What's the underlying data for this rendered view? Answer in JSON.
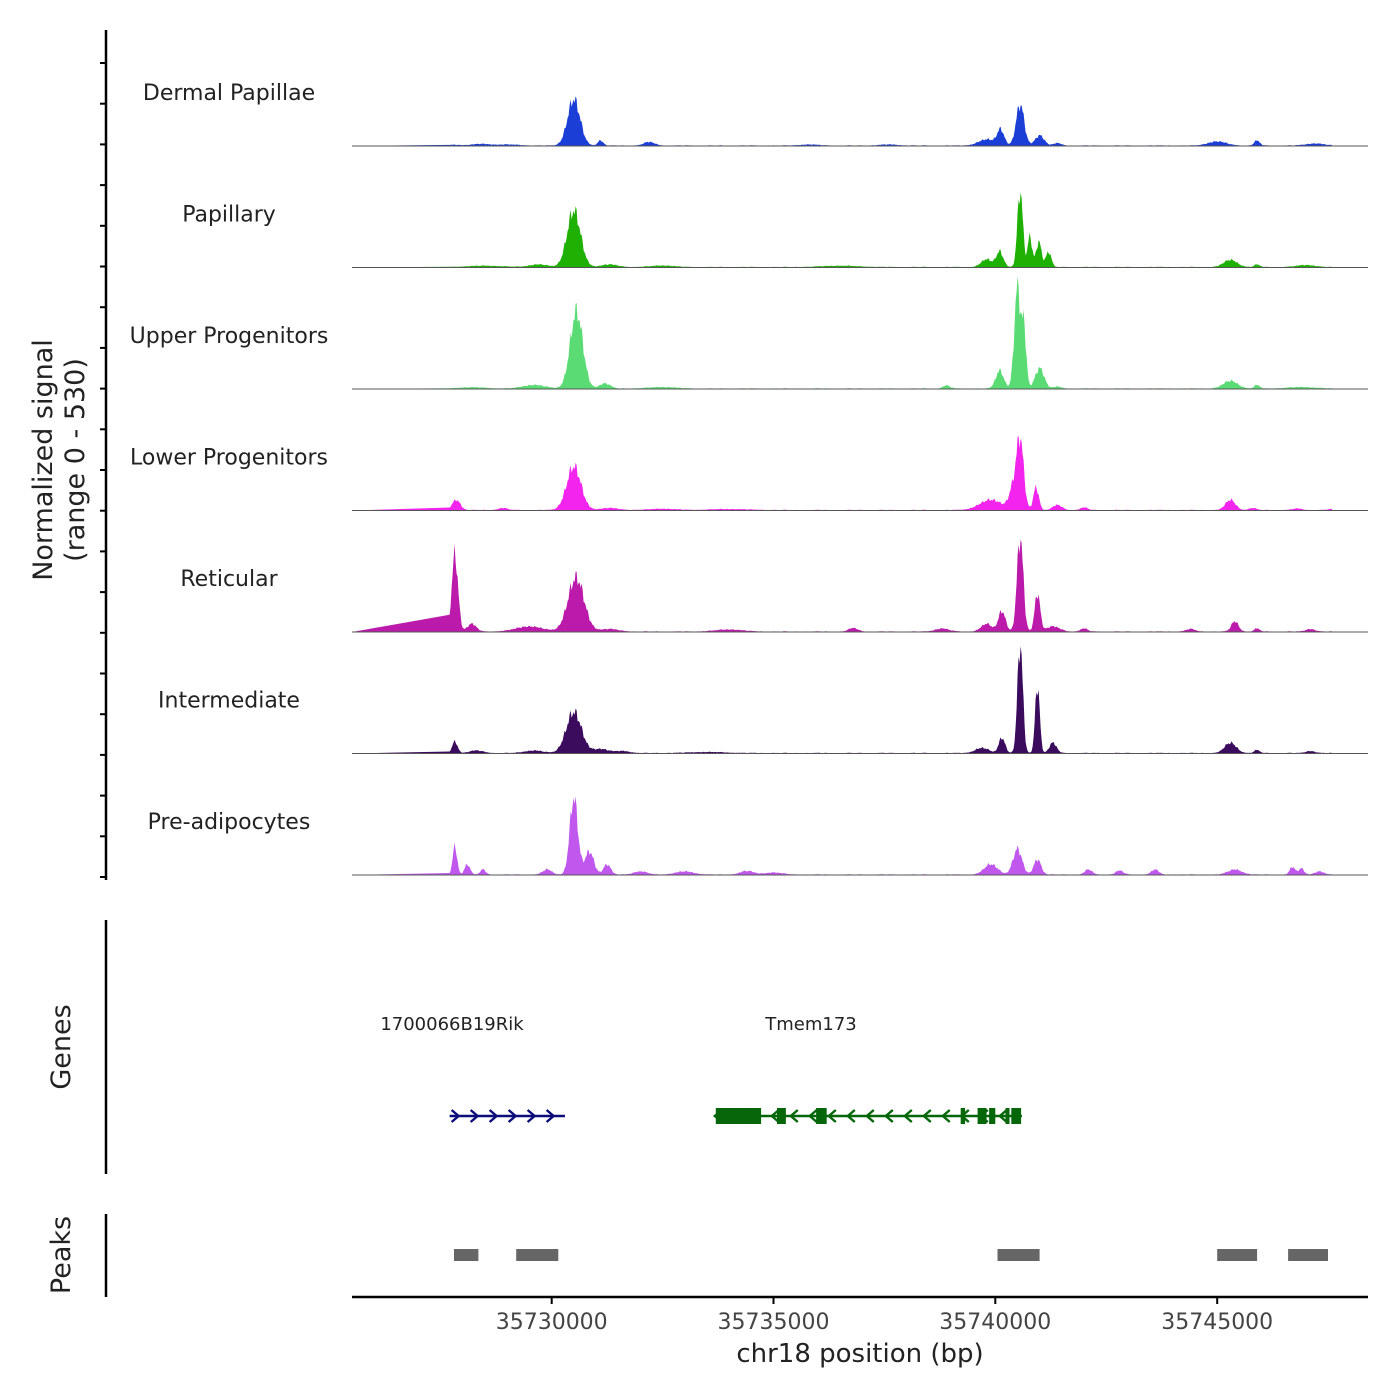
{
  "chart_data": {
    "type": "area",
    "title": "",
    "ylabel_line1": "Normalized signal",
    "ylabel_line2": "(range 0 - 530)",
    "y_range": [
      0,
      530
    ],
    "xlabel": "chr18 position (bp)",
    "x_range": [
      35725500,
      35748400
    ],
    "x_ticks": [
      35730000,
      35735000,
      35740000,
      35745000
    ],
    "x_tick_labels": [
      "35730000",
      "35735000",
      "35740000",
      "35745000"
    ],
    "tracks": [
      {
        "name": "Dermal Papillae",
        "color": "#1a3ed6",
        "peaks": [
          [
            35727800,
            3,
            150
          ],
          [
            35728400,
            6,
            200
          ],
          [
            35729000,
            4,
            250
          ],
          [
            35730500,
            180,
            140
          ],
          [
            35731100,
            20,
            60
          ],
          [
            35732200,
            14,
            120
          ],
          [
            35735800,
            4,
            200
          ],
          [
            35737600,
            4,
            200
          ],
          [
            35739800,
            24,
            180
          ],
          [
            35740120,
            60,
            80
          ],
          [
            35740560,
            160,
            90
          ],
          [
            35741000,
            40,
            100
          ],
          [
            35741400,
            10,
            80
          ],
          [
            35745000,
            16,
            200
          ],
          [
            35745900,
            20,
            60
          ],
          [
            35747200,
            8,
            200
          ]
        ]
      },
      {
        "name": "Papillary",
        "color": "#1eb002",
        "peaks": [
          [
            35728500,
            5,
            400
          ],
          [
            35729700,
            10,
            200
          ],
          [
            35730500,
            220,
            150
          ],
          [
            35731300,
            10,
            180
          ],
          [
            35732500,
            6,
            250
          ],
          [
            35736500,
            5,
            400
          ],
          [
            35739800,
            30,
            120
          ],
          [
            35740100,
            60,
            80
          ],
          [
            35740560,
            300,
            60
          ],
          [
            35740780,
            120,
            50
          ],
          [
            35740980,
            100,
            60
          ],
          [
            35741200,
            60,
            60
          ],
          [
            35745300,
            28,
            150
          ],
          [
            35745900,
            10,
            60
          ],
          [
            35747000,
            8,
            200
          ]
        ]
      },
      {
        "name": "Upper Progenitors",
        "color": "#5bdb73",
        "peaks": [
          [
            35728200,
            5,
            300
          ],
          [
            35729600,
            14,
            250
          ],
          [
            35730560,
            300,
            140
          ],
          [
            35731200,
            20,
            120
          ],
          [
            35732500,
            6,
            300
          ],
          [
            35738900,
            12,
            80
          ],
          [
            35740100,
            70,
            90
          ],
          [
            35740500,
            400,
            70
          ],
          [
            35740650,
            220,
            50
          ],
          [
            35741000,
            80,
            100
          ],
          [
            35741400,
            8,
            80
          ],
          [
            35745300,
            30,
            160
          ],
          [
            35745900,
            14,
            60
          ],
          [
            35746900,
            6,
            300
          ]
        ]
      },
      {
        "name": "Lower Progenitors",
        "color": "#f224ee",
        "peaks": [
          [
            35727850,
            40,
            90
          ],
          [
            35728900,
            8,
            100
          ],
          [
            35730500,
            170,
            160
          ],
          [
            35731300,
            8,
            200
          ],
          [
            35732500,
            5,
            300
          ],
          [
            35734000,
            4,
            400
          ],
          [
            35739900,
            40,
            250
          ],
          [
            35740400,
            80,
            90
          ],
          [
            35740560,
            270,
            80
          ],
          [
            35740920,
            90,
            60
          ],
          [
            35741400,
            20,
            100
          ],
          [
            35742000,
            10,
            80
          ],
          [
            35745300,
            40,
            110
          ],
          [
            35745800,
            8,
            80
          ],
          [
            35746800,
            6,
            100
          ],
          [
            35747600,
            4,
            100
          ]
        ]
      },
      {
        "name": "Reticular",
        "color": "#bb1aab",
        "peaks": [
          [
            35727820,
            300,
            70
          ],
          [
            35728200,
            30,
            100
          ],
          [
            35729500,
            20,
            300
          ],
          [
            35730550,
            210,
            180
          ],
          [
            35731300,
            10,
            200
          ],
          [
            35734000,
            8,
            300
          ],
          [
            35736800,
            14,
            100
          ],
          [
            35738800,
            12,
            150
          ],
          [
            35739800,
            30,
            120
          ],
          [
            35740150,
            80,
            80
          ],
          [
            35740560,
            370,
            70
          ],
          [
            35740950,
            150,
            60
          ],
          [
            35741300,
            20,
            150
          ],
          [
            35742000,
            12,
            80
          ],
          [
            35744400,
            10,
            100
          ],
          [
            35745400,
            40,
            80
          ],
          [
            35745900,
            12,
            60
          ],
          [
            35747100,
            10,
            100
          ]
        ]
      },
      {
        "name": "Intermediate",
        "color": "#3b0b5e",
        "peaks": [
          [
            35727820,
            45,
            60
          ],
          [
            35728300,
            10,
            150
          ],
          [
            35729600,
            10,
            200
          ],
          [
            35730500,
            160,
            170
          ],
          [
            35731100,
            16,
            180
          ],
          [
            35731600,
            8,
            150
          ],
          [
            35733500,
            4,
            400
          ],
          [
            35739700,
            20,
            150
          ],
          [
            35740150,
            60,
            70
          ],
          [
            35740560,
            430,
            60
          ],
          [
            35740950,
            270,
            50
          ],
          [
            35741300,
            40,
            80
          ],
          [
            35745300,
            40,
            130
          ],
          [
            35745900,
            12,
            60
          ],
          [
            35747100,
            8,
            100
          ]
        ]
      },
      {
        "name": "Pre-adipocytes",
        "color": "#c158ee",
        "peaks": [
          [
            35727820,
            110,
            50
          ],
          [
            35728100,
            40,
            60
          ],
          [
            35728450,
            20,
            60
          ],
          [
            35729900,
            20,
            100
          ],
          [
            35730500,
            300,
            90
          ],
          [
            35730850,
            90,
            100
          ],
          [
            35731250,
            40,
            80
          ],
          [
            35732000,
            12,
            150
          ],
          [
            35733000,
            12,
            200
          ],
          [
            35734400,
            14,
            150
          ],
          [
            35735000,
            8,
            200
          ],
          [
            35739900,
            40,
            150
          ],
          [
            35740500,
            100,
            100
          ],
          [
            35740950,
            60,
            80
          ],
          [
            35742100,
            20,
            80
          ],
          [
            35742800,
            16,
            80
          ],
          [
            35743600,
            20,
            80
          ],
          [
            35745400,
            20,
            150
          ],
          [
            35746700,
            30,
            60
          ],
          [
            35746900,
            24,
            60
          ],
          [
            35747300,
            12,
            100
          ]
        ]
      }
    ],
    "genes": [
      {
        "name": "1700066B19Rik",
        "start": 35727700,
        "end": 35730300,
        "strand": "+",
        "color": "#0d0d7a",
        "exons": []
      },
      {
        "name": "Tmem173",
        "start": 35733700,
        "end": 35740600,
        "strand": "-",
        "color": "#06660a",
        "exons": [
          [
            35733700,
            35734720
          ],
          [
            35735080,
            35735280
          ],
          [
            35735960,
            35736200
          ],
          [
            35739220,
            35739320
          ],
          [
            35739600,
            35739800
          ],
          [
            35739860,
            35740000
          ],
          [
            35740230,
            35740280
          ],
          [
            35740360,
            35740580
          ]
        ]
      }
    ],
    "peaks_track": [
      [
        35727800,
        35728350
      ],
      [
        35729200,
        35730150
      ],
      [
        35740050,
        35741000
      ],
      [
        35745000,
        35745900
      ],
      [
        35746600,
        35747500
      ]
    ],
    "row_labels": {
      "genes": "Genes",
      "peaks": "Peaks"
    }
  }
}
